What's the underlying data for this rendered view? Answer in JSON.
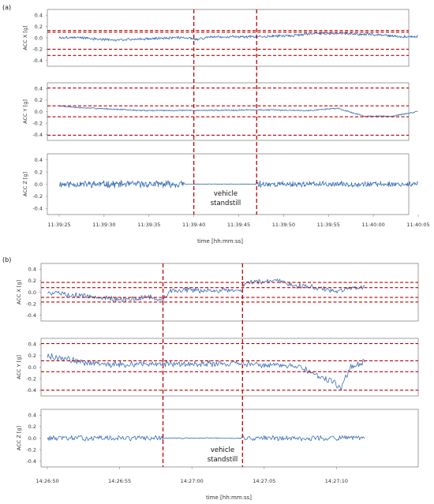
{
  "colors": {
    "series": "#3a6fb7",
    "threshold": "#c00000",
    "axis": "#888888"
  },
  "chart_data": [
    {
      "type": "line",
      "panel_label": "(a)",
      "xlabel": "time [hh:mm:ss]",
      "x_range": [
        "11:39:25",
        "11:40:05"
      ],
      "x_ticks": [
        "11:39:25",
        "11:39:30",
        "11:39:35",
        "11:39:40",
        "11:39:45",
        "11:39:50",
        "11:39:55",
        "11:40:00",
        "11:40:05"
      ],
      "vertical_markers": [
        "11:39:40",
        "11:39:47"
      ],
      "annotation": {
        "text_lines": [
          "vehicle",
          "standstill"
        ],
        "x": "11:39:43.5",
        "subplot": 2
      },
      "subplots": [
        {
          "ylabel": "ACC X [g]",
          "ylim": [
            -0.5,
            0.5
          ],
          "yticks": [
            "0.4",
            "0.2",
            "0.0",
            "-0.2",
            "-0.4"
          ],
          "thresholds": [
            0.13,
            0.1,
            -0.2,
            -0.31
          ],
          "series": [
            {
              "x_sec": [
                0,
                2,
                4,
                6,
                9,
                14,
                15,
                17,
                20,
                22,
                24,
                27,
                28,
                30,
                33,
                36,
                38,
                40
              ],
              "values": [
                0.0,
                0.01,
                -0.02,
                -0.04,
                -0.02,
                0.01,
                -0.03,
                0.02,
                0.02,
                0.02,
                0.03,
                0.05,
                0.08,
                0.08,
                0.07,
                0.05,
                0.02,
                0.02
              ],
              "noise": 0.02,
              "seed": 3
            }
          ]
        },
        {
          "ylabel": "ACC Y [g]",
          "ylim": [
            -0.5,
            0.5
          ],
          "yticks": [
            "0.4",
            "0.2",
            "0.0",
            "-0.2",
            "-0.4"
          ],
          "thresholds": [
            0.41,
            0.1,
            -0.09,
            -0.41
          ],
          "series": [
            {
              "x_sec": [
                0,
                2,
                5,
                9,
                14,
                15,
                22,
                28,
                31,
                34,
                37,
                40
              ],
              "values": [
                0.1,
                0.07,
                0.05,
                0.02,
                0.02,
                0.02,
                0.03,
                0.02,
                0.06,
                -0.08,
                -0.08,
                0.0
              ],
              "noise": 0.01,
              "seed": 7
            }
          ]
        },
        {
          "ylabel": "ACC Z [g]",
          "ylim": [
            -0.5,
            0.5
          ],
          "yticks": [
            "0.4",
            "0.2",
            "0.0",
            "-0.2",
            "-0.4"
          ],
          "thresholds": [],
          "series": [
            {
              "x_sec": [
                0,
                14,
                15,
                22,
                22.5,
                40
              ],
              "values": [
                0.0,
                0.0,
                0.0,
                0.0,
                0.0,
                0.0
              ],
              "noise_by_segment": [
                0.05,
                0.0,
                0.005,
                0.07,
                0.04
              ],
              "seed": 11
            }
          ]
        }
      ]
    },
    {
      "type": "line",
      "panel_label": "(b)",
      "xlabel": "time [hh:mm:ss]",
      "x_range": [
        "14:26:50",
        "14:27:15"
      ],
      "x_ticks": [
        "14:26:50",
        "14:26:55",
        "14:27:00",
        "14:27:05",
        "14:27:10"
      ],
      "vertical_markers": [
        "14:26:58",
        "14:27:03.5"
      ],
      "annotation": {
        "text_lines": [
          "vehicle",
          "standstill"
        ],
        "x": "14:27:00.7",
        "subplot": 2
      },
      "subplots": [
        {
          "ylabel": "ACC X [g]",
          "ylim": [
            -0.5,
            0.5
          ],
          "yticks": [
            "0.4",
            "0.2",
            "0.0",
            "-0.2",
            "-0.4"
          ],
          "thresholds": [
            0.17,
            0.08,
            -0.09,
            -0.17
          ],
          "series": [
            {
              "x_sec": [
                0,
                2,
                3.5,
                5,
                6,
                7,
                8,
                8.5,
                13.5,
                13.6,
                15,
                16,
                17,
                18,
                19,
                20,
                21,
                22
              ],
              "values": [
                0.0,
                -0.05,
                -0.08,
                -0.13,
                -0.12,
                -0.08,
                -0.13,
                0.03,
                0.03,
                0.15,
                0.18,
                0.2,
                0.12,
                0.1,
                0.06,
                0.02,
                0.08,
                0.1
              ],
              "noise": 0.04,
              "seed": 5
            }
          ]
        },
        {
          "ylabel": "ACC Y [g]",
          "ylim": [
            -0.5,
            0.5
          ],
          "yticks": [
            "0.4",
            "0.2",
            "0.0",
            "-0.2",
            "-0.4"
          ],
          "thresholds": [
            0.41,
            0.11,
            -0.08,
            -0.4
          ],
          "series": [
            {
              "x_sec": [
                0,
                1,
                2,
                3,
                5,
                8,
                13.5,
                15,
                17,
                18,
                19,
                19.8,
                20.3,
                21,
                22
              ],
              "values": [
                0.2,
                0.16,
                0.1,
                0.07,
                0.05,
                0.06,
                0.06,
                0.04,
                0.02,
                -0.05,
                -0.2,
                -0.25,
                -0.38,
                0.0,
                0.1
              ],
              "noise": 0.05,
              "seed": 9
            }
          ]
        },
        {
          "ylabel": "ACC Z [g]",
          "ylim": [
            -0.5,
            0.5
          ],
          "yticks": [
            "0.4",
            "0.2",
            "0.0",
            "-0.2",
            "-0.4"
          ],
          "thresholds": [],
          "series": [
            {
              "x_sec": [
                0,
                8,
                13.5,
                22
              ],
              "values": [
                0.0,
                0.0,
                0.0,
                0.0
              ],
              "noise_by_segment": [
                0.04,
                0.008,
                0.04
              ],
              "seed": 13
            }
          ]
        }
      ]
    }
  ]
}
